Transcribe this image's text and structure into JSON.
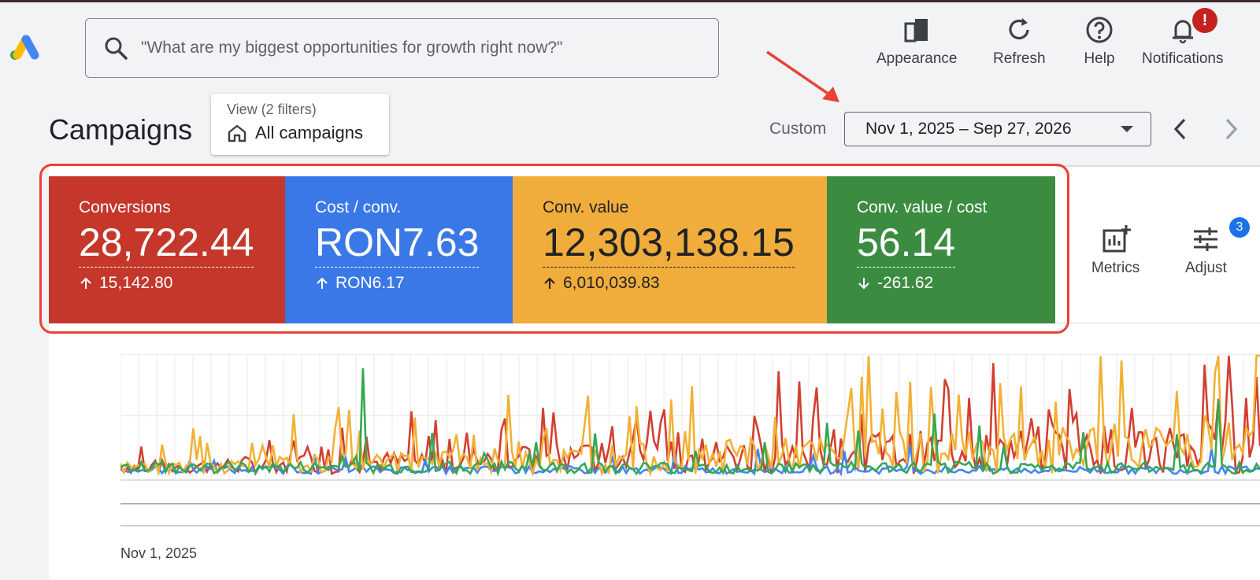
{
  "search": {
    "placeholder": "\"What are my biggest opportunities for growth right now?\""
  },
  "toolbar": {
    "appearance": "Appearance",
    "refresh": "Refresh",
    "help": "Help",
    "notifications": "Notifications",
    "notification_badge": "!"
  },
  "page": {
    "title": "Campaigns"
  },
  "view": {
    "filters_label": "View (2 filters)",
    "selected": "All campaigns"
  },
  "date": {
    "mode": "Custom",
    "range": "Nov 1, 2025 – Sep 27, 2026"
  },
  "metrics": [
    {
      "name": "Conversions",
      "value": "28,722.44",
      "change": "15,142.80",
      "direction": "up",
      "color": "#c5372b",
      "text": "#ffffff"
    },
    {
      "name": "Cost / conv.",
      "value": "RON7.63",
      "change": "RON6.17",
      "direction": "up",
      "color": "#3b78e7",
      "text": "#ffffff"
    },
    {
      "name": "Conv. value",
      "value": "12,303,138.15",
      "change": "6,010,039.83",
      "direction": "up",
      "color": "#f0ad3c",
      "text": "#202124"
    },
    {
      "name": "Conv. value / cost",
      "value": "56.14",
      "change": "-261.62",
      "direction": "down",
      "color": "#3b8c41",
      "text": "#ffffff"
    }
  ],
  "side_buttons": {
    "metrics": "Metrics",
    "adjust": "Adjust",
    "adjust_badge": "3"
  },
  "chart_data": {
    "type": "line",
    "x_start_label": "Nov 1, 2025",
    "series": [
      {
        "color": "#d23f31"
      },
      {
        "color": "#4285f4"
      },
      {
        "color": "#f2b134"
      },
      {
        "color": "#34a853"
      }
    ]
  },
  "colors": {
    "accent_highlight": "#e94235",
    "badge_red": "#c5221f",
    "badge_blue": "#1a73e8"
  }
}
